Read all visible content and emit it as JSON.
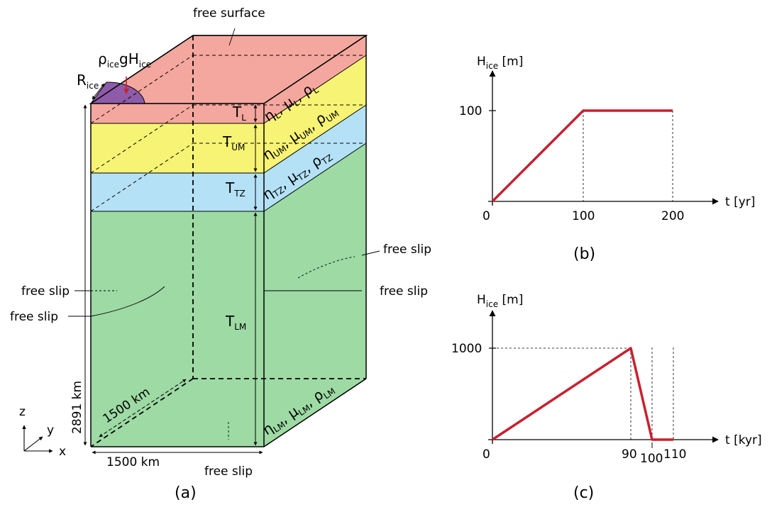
{
  "colors": {
    "lithosphere": "#f4a79e",
    "upper_mantle": "#f7f374",
    "transition_zone": "#b4e1f6",
    "lower_mantle": "#9ddaa4",
    "ice": "#8e5ba8",
    "load_curve": "#c8202f"
  },
  "panel_a": {
    "caption": "(a)",
    "free_surface": "free surface",
    "ice_load": {
      "base": "ρ",
      "s1": "ice",
      "mid": "gH",
      "s2": "ice"
    },
    "ice_radius": {
      "base": "R",
      "sub": "ice"
    },
    "thickness": {
      "lithosphere": {
        "base": "T",
        "sub": "L"
      },
      "upper_mantle": {
        "base": "T",
        "sub": "UM"
      },
      "transition_zone": {
        "base": "T",
        "sub": "TZ"
      },
      "lower_mantle": {
        "base": "T",
        "sub": "LM"
      }
    },
    "props": {
      "lithosphere": {
        "eta": "η",
        "eta_sub": "L",
        "mu": "μ",
        "mu_sub": "L",
        "rho": "ρ",
        "rho_sub": "L"
      },
      "upper_mantle": {
        "eta": "η",
        "eta_sub": "UM",
        "mu": "μ",
        "mu_sub": "UM",
        "rho": "ρ",
        "rho_sub": "UM"
      },
      "transition_zone": {
        "eta": "η",
        "eta_sub": "TZ",
        "mu": "μ",
        "mu_sub": "TZ",
        "rho": "ρ",
        "rho_sub": "TZ"
      },
      "lower_mantle": {
        "eta": "η",
        "eta_sub": "LM",
        "mu": "μ",
        "mu_sub": "LM",
        "rho": "ρ",
        "rho_sub": "LM"
      }
    },
    "free_slip": {
      "left_outer": "free slip",
      "left_lower": "free slip",
      "right_upper": "free slip",
      "right_outer": "free slip",
      "bottom": "free slip"
    },
    "depth_label": "2891 km",
    "width_label": "1500 km",
    "depth_axis_label": "1500 km",
    "axes": {
      "z": "z",
      "y": "y",
      "x": "x"
    }
  },
  "panel_b": {
    "caption": "(b)",
    "ylabel": {
      "base": "H",
      "sub": "ice",
      "unit": " [m]"
    },
    "xlabel": "t [yr]",
    "xticks": [
      "0",
      "100",
      "200"
    ],
    "yticks": [
      "100"
    ]
  },
  "panel_c": {
    "caption": "(c)",
    "ylabel": {
      "base": "H",
      "sub": "ice",
      "unit": " [m]"
    },
    "xlabel": "t [kyr]",
    "xticks": [
      "0",
      "90",
      "100",
      "110"
    ],
    "yticks": [
      "1000"
    ]
  }
}
